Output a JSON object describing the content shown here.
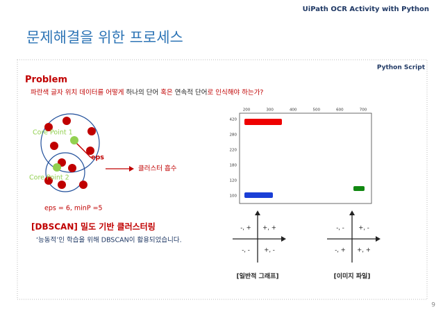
{
  "header": {
    "subtitle": "UiPath OCR Activity with Python",
    "title": "문제해결을 위한 프로세스",
    "tag": "Python Script"
  },
  "problem": {
    "heading": "Problem",
    "question": [
      "파란색 글자 위치 데이터를 어떻게 ",
      "하나의 단어",
      " 혹은 ",
      "연속적 단어",
      "로 인식해야 하는가?"
    ]
  },
  "diagram": {
    "core1": "Core Point 1",
    "core2": "Core Point 2",
    "eps": "eps",
    "absorb": "클러스터 흡수",
    "params": "eps = 6, minP =5"
  },
  "dbscan": {
    "heading": "[DBSCAN] 밀도 기반 클러스터링",
    "note": "‘능동적’인 학습을 위해 DBSCAN이 활용되었습니다."
  },
  "plot": {
    "xticks": [
      "200",
      "300",
      "400",
      "500",
      "600",
      "700"
    ],
    "yticks": [
      "420",
      "280",
      "220",
      "180",
      "120",
      "100"
    ]
  },
  "quadrants": [
    {
      "cells": [
        "-, +",
        "+, +",
        "-, -",
        "+, -"
      ],
      "label": "[일반적 그래프]"
    },
    {
      "cells": [
        "-, -",
        "+, -",
        "-, +",
        "+, +"
      ],
      "label": "[이미지 파일]"
    }
  ],
  "page_number": "9"
}
